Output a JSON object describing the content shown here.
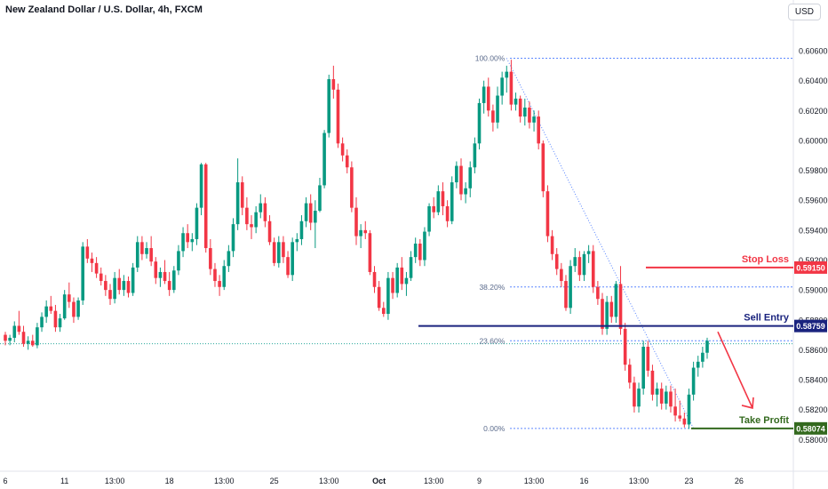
{
  "header": {
    "symbol_title": "New Zealand Dollar / U.S. Dollar, 4h, FXCM",
    "currency_button": "USD"
  },
  "chart_data": {
    "type": "candlestick",
    "title": "New Zealand Dollar / U.S. Dollar, 4h, FXCM",
    "ylim": [
      0.5796,
      0.6066
    ],
    "price_ticks": [
      "0.60600",
      "0.60400",
      "0.60200",
      "0.60000",
      "0.59800",
      "0.59600",
      "0.59400",
      "0.59200",
      "0.59000",
      "0.58800",
      "0.58600",
      "0.58400",
      "0.58200",
      "0.58000"
    ],
    "time_ticks": [
      "6",
      "11",
      "13:00",
      "18",
      "13:00",
      "25",
      "13:00",
      "Oct",
      "13:00",
      "9",
      "13:00",
      "16",
      "13:00",
      "23",
      "26"
    ],
    "candle_count": 155,
    "candles_ohlc": [
      [
        0.587,
        0.5872,
        0.5863,
        0.5866
      ],
      [
        0.5866,
        0.587,
        0.5863,
        0.5868
      ],
      [
        0.5868,
        0.5879,
        0.5865,
        0.5876
      ],
      [
        0.5876,
        0.5886,
        0.587,
        0.5872
      ],
      [
        0.5872,
        0.5876,
        0.5862,
        0.5864
      ],
      [
        0.5864,
        0.5869,
        0.586,
        0.5866
      ],
      [
        0.5866,
        0.587,
        0.5862,
        0.5863
      ],
      [
        0.5863,
        0.5878,
        0.5861,
        0.5875
      ],
      [
        0.5875,
        0.5885,
        0.5872,
        0.5882
      ],
      [
        0.5882,
        0.5893,
        0.5878,
        0.5889
      ],
      [
        0.5889,
        0.5896,
        0.5884,
        0.5886
      ],
      [
        0.5886,
        0.589,
        0.5872,
        0.5875
      ],
      [
        0.5875,
        0.5884,
        0.5872,
        0.5881
      ],
      [
        0.5881,
        0.59,
        0.588,
        0.5897
      ],
      [
        0.5897,
        0.5905,
        0.5888,
        0.5892
      ],
      [
        0.5892,
        0.5895,
        0.5878,
        0.5882
      ],
      [
        0.5882,
        0.5895,
        0.588,
        0.5893
      ],
      [
        0.5893,
        0.5932,
        0.589,
        0.5929
      ],
      [
        0.5929,
        0.5934,
        0.5918,
        0.5921
      ],
      [
        0.5921,
        0.5925,
        0.5912,
        0.5918
      ],
      [
        0.5918,
        0.5922,
        0.5908,
        0.5911
      ],
      [
        0.5911,
        0.5915,
        0.5903,
        0.5906
      ],
      [
        0.5906,
        0.591,
        0.5896,
        0.59
      ],
      [
        0.59,
        0.5904,
        0.589,
        0.5894
      ],
      [
        0.5894,
        0.5912,
        0.5891,
        0.5908
      ],
      [
        0.5908,
        0.5914,
        0.5897,
        0.59
      ],
      [
        0.59,
        0.591,
        0.5896,
        0.5906
      ],
      [
        0.5906,
        0.5909,
        0.5895,
        0.5898
      ],
      [
        0.5898,
        0.5918,
        0.5896,
        0.5915
      ],
      [
        0.5915,
        0.5936,
        0.5912,
        0.5932
      ],
      [
        0.5932,
        0.5936,
        0.592,
        0.5924
      ],
      [
        0.5924,
        0.5932,
        0.5921,
        0.5928
      ],
      [
        0.5928,
        0.5936,
        0.5916,
        0.5919
      ],
      [
        0.5919,
        0.5922,
        0.5904,
        0.5908
      ],
      [
        0.5908,
        0.5915,
        0.5902,
        0.5912
      ],
      [
        0.5912,
        0.592,
        0.5904,
        0.5906
      ],
      [
        0.5906,
        0.5912,
        0.5896,
        0.59
      ],
      [
        0.59,
        0.5916,
        0.5898,
        0.5913
      ],
      [
        0.5913,
        0.593,
        0.591,
        0.5926
      ],
      [
        0.5926,
        0.5942,
        0.5922,
        0.5938
      ],
      [
        0.5938,
        0.5944,
        0.5928,
        0.5932
      ],
      [
        0.5932,
        0.5938,
        0.5926,
        0.5934
      ],
      [
        0.5934,
        0.5958,
        0.593,
        0.5955
      ],
      [
        0.5955,
        0.5985,
        0.595,
        0.5984
      ],
      [
        0.5984,
        0.5985,
        0.5925,
        0.5928
      ],
      [
        0.5928,
        0.5934,
        0.591,
        0.5914
      ],
      [
        0.5914,
        0.5918,
        0.5902,
        0.5906
      ],
      [
        0.5906,
        0.591,
        0.5896,
        0.5902
      ],
      [
        0.5902,
        0.592,
        0.59,
        0.5916
      ],
      [
        0.5916,
        0.593,
        0.5912,
        0.5926
      ],
      [
        0.5926,
        0.5948,
        0.5922,
        0.5944
      ],
      [
        0.5944,
        0.5988,
        0.594,
        0.5972
      ],
      [
        0.5972,
        0.5976,
        0.595,
        0.5955
      ],
      [
        0.5955,
        0.5962,
        0.594,
        0.5944
      ],
      [
        0.5944,
        0.595,
        0.5934,
        0.5942
      ],
      [
        0.5942,
        0.5956,
        0.5938,
        0.5952
      ],
      [
        0.5952,
        0.5964,
        0.5948,
        0.5958
      ],
      [
        0.5958,
        0.5962,
        0.5942,
        0.5946
      ],
      [
        0.5946,
        0.595,
        0.593,
        0.5932
      ],
      [
        0.5932,
        0.5935,
        0.5916,
        0.5918
      ],
      [
        0.5918,
        0.5936,
        0.5915,
        0.5932
      ],
      [
        0.5932,
        0.5936,
        0.5918,
        0.5922
      ],
      [
        0.5922,
        0.5926,
        0.5908,
        0.591
      ],
      [
        0.591,
        0.5935,
        0.5906,
        0.5932
      ],
      [
        0.5932,
        0.5938,
        0.5926,
        0.5934
      ],
      [
        0.5934,
        0.595,
        0.593,
        0.5946
      ],
      [
        0.5946,
        0.5962,
        0.5942,
        0.5958
      ],
      [
        0.5958,
        0.5964,
        0.594,
        0.5945
      ],
      [
        0.5945,
        0.596,
        0.5928,
        0.5953
      ],
      [
        0.5953,
        0.5975,
        0.5952,
        0.597
      ],
      [
        0.597,
        0.6007,
        0.5968,
        0.6005
      ],
      [
        0.6005,
        0.6044,
        0.6002,
        0.6041
      ],
      [
        0.6041,
        0.605,
        0.6028,
        0.6034
      ],
      [
        0.6034,
        0.6038,
        0.5995,
        0.5998
      ],
      [
        0.5998,
        0.6002,
        0.5986,
        0.599
      ],
      [
        0.599,
        0.5994,
        0.5978,
        0.5982
      ],
      [
        0.5982,
        0.5986,
        0.5952,
        0.5955
      ],
      [
        0.5955,
        0.5962,
        0.593,
        0.5936
      ],
      [
        0.5936,
        0.5944,
        0.5928,
        0.594
      ],
      [
        0.594,
        0.5946,
        0.5934,
        0.5938
      ],
      [
        0.5938,
        0.594,
        0.591,
        0.5912
      ],
      [
        0.5912,
        0.5916,
        0.5898,
        0.5902
      ],
      [
        0.5902,
        0.5906,
        0.5886,
        0.5888
      ],
      [
        0.5888,
        0.5892,
        0.5882,
        0.5884
      ],
      [
        0.5884,
        0.5912,
        0.588,
        0.5908
      ],
      [
        0.5908,
        0.5912,
        0.5894,
        0.5898
      ],
      [
        0.5898,
        0.5918,
        0.5895,
        0.5915
      ],
      [
        0.5915,
        0.5922,
        0.59,
        0.5904
      ],
      [
        0.5904,
        0.5912,
        0.5896,
        0.5908
      ],
      [
        0.5908,
        0.5926,
        0.5906,
        0.5922
      ],
      [
        0.5922,
        0.5935,
        0.5918,
        0.5931
      ],
      [
        0.5931,
        0.5934,
        0.5916,
        0.592
      ],
      [
        0.592,
        0.5942,
        0.5916,
        0.5939
      ],
      [
        0.5939,
        0.5958,
        0.5936,
        0.5956
      ],
      [
        0.5956,
        0.5962,
        0.5948,
        0.5952
      ],
      [
        0.5952,
        0.597,
        0.595,
        0.5966
      ],
      [
        0.5966,
        0.5972,
        0.595,
        0.5956
      ],
      [
        0.5956,
        0.596,
        0.5942,
        0.5946
      ],
      [
        0.5946,
        0.5976,
        0.5944,
        0.5972
      ],
      [
        0.5972,
        0.5986,
        0.5968,
        0.5983
      ],
      [
        0.5983,
        0.5988,
        0.596,
        0.5964
      ],
      [
        0.5964,
        0.5972,
        0.5958,
        0.5968
      ],
      [
        0.5968,
        0.5986,
        0.5962,
        0.5982
      ],
      [
        0.5982,
        0.6002,
        0.5978,
        0.5998
      ],
      [
        0.5998,
        0.6028,
        0.5994,
        0.6025
      ],
      [
        0.6025,
        0.604,
        0.6018,
        0.6036
      ],
      [
        0.6036,
        0.6042,
        0.6016,
        0.602
      ],
      [
        0.602,
        0.6024,
        0.6006,
        0.6012
      ],
      [
        0.6012,
        0.6036,
        0.6008,
        0.603
      ],
      [
        0.603,
        0.6046,
        0.6024,
        0.6042
      ],
      [
        0.6042,
        0.605,
        0.6032,
        0.6046
      ],
      [
        0.6046,
        0.6054,
        0.602,
        0.6024
      ],
      [
        0.6024,
        0.6032,
        0.602,
        0.6028
      ],
      [
        0.6028,
        0.603,
        0.6012,
        0.6016
      ],
      [
        0.6016,
        0.6028,
        0.601,
        0.6022
      ],
      [
        0.6022,
        0.6026,
        0.6008,
        0.6012
      ],
      [
        0.6012,
        0.602,
        0.6006,
        0.6016
      ],
      [
        0.6016,
        0.602,
        0.5994,
        0.5998
      ],
      [
        0.5998,
        0.6,
        0.5962,
        0.5966
      ],
      [
        0.5966,
        0.597,
        0.5932,
        0.5936
      ],
      [
        0.5936,
        0.594,
        0.592,
        0.5924
      ],
      [
        0.5924,
        0.5928,
        0.591,
        0.5914
      ],
      [
        0.5914,
        0.5918,
        0.5902,
        0.5906
      ],
      [
        0.5906,
        0.591,
        0.5886,
        0.5888
      ],
      [
        0.5888,
        0.592,
        0.5884,
        0.5916
      ],
      [
        0.5916,
        0.5928,
        0.5912,
        0.5922
      ],
      [
        0.5922,
        0.5926,
        0.5906,
        0.591
      ],
      [
        0.591,
        0.5926,
        0.5906,
        0.5924
      ],
      [
        0.5924,
        0.593,
        0.5918,
        0.5926
      ],
      [
        0.5926,
        0.593,
        0.5898,
        0.5902
      ],
      [
        0.5902,
        0.5906,
        0.589,
        0.5894
      ],
      [
        0.5894,
        0.5898,
        0.587,
        0.5874
      ],
      [
        0.5874,
        0.5896,
        0.587,
        0.5892
      ],
      [
        0.5892,
        0.5896,
        0.5878,
        0.5882
      ],
      [
        0.5882,
        0.5906,
        0.5878,
        0.5904
      ],
      [
        0.5904,
        0.5916,
        0.587,
        0.5874
      ],
      [
        0.5874,
        0.5878,
        0.5846,
        0.585
      ],
      [
        0.585,
        0.5854,
        0.5834,
        0.5838
      ],
      [
        0.5838,
        0.5842,
        0.5818,
        0.5822
      ],
      [
        0.5822,
        0.5838,
        0.5818,
        0.5834
      ],
      [
        0.5834,
        0.5866,
        0.583,
        0.5862
      ],
      [
        0.5862,
        0.5866,
        0.5842,
        0.5846
      ],
      [
        0.5846,
        0.585,
        0.5826,
        0.583
      ],
      [
        0.583,
        0.5838,
        0.5822,
        0.5834
      ],
      [
        0.5834,
        0.5838,
        0.582,
        0.5824
      ],
      [
        0.5824,
        0.5836,
        0.582,
        0.5832
      ],
      [
        0.5832,
        0.5836,
        0.5818,
        0.5822
      ],
      [
        0.5822,
        0.5834,
        0.5812,
        0.5816
      ],
      [
        0.5816,
        0.5826,
        0.5812,
        0.5814
      ],
      [
        0.5814,
        0.5818,
        0.5808,
        0.581
      ],
      [
        0.581,
        0.5834,
        0.5807,
        0.583
      ],
      [
        0.583,
        0.5852,
        0.5826,
        0.5848
      ],
      [
        0.5848,
        0.5856,
        0.5842,
        0.5852
      ],
      [
        0.5852,
        0.5862,
        0.5848,
        0.5858
      ],
      [
        0.5858,
        0.5868,
        0.5854,
        0.5866
      ]
    ],
    "fibonacci": [
      {
        "label": "100.00%",
        "price": 0.6055
      },
      {
        "label": "38.20%",
        "price": 0.5902
      },
      {
        "label": "23.60%",
        "price": 0.5866
      },
      {
        "label": "0.00%",
        "price": 0.58074
      }
    ],
    "levels": [
      {
        "name": "Stop Loss",
        "price_label": "0.59150",
        "price": 0.5915,
        "color": "#f23645"
      },
      {
        "name": "Sell Entry",
        "price_label": "0.58759",
        "price": 0.58759,
        "color": "#1a237e"
      },
      {
        "name": "Take Profit",
        "price_label": "0.58074",
        "price": 0.58074,
        "color": "#33691e"
      }
    ],
    "colors": {
      "up": "#089981",
      "down": "#f23645",
      "fib": "#2962ff",
      "arrow": "#f23645"
    }
  }
}
